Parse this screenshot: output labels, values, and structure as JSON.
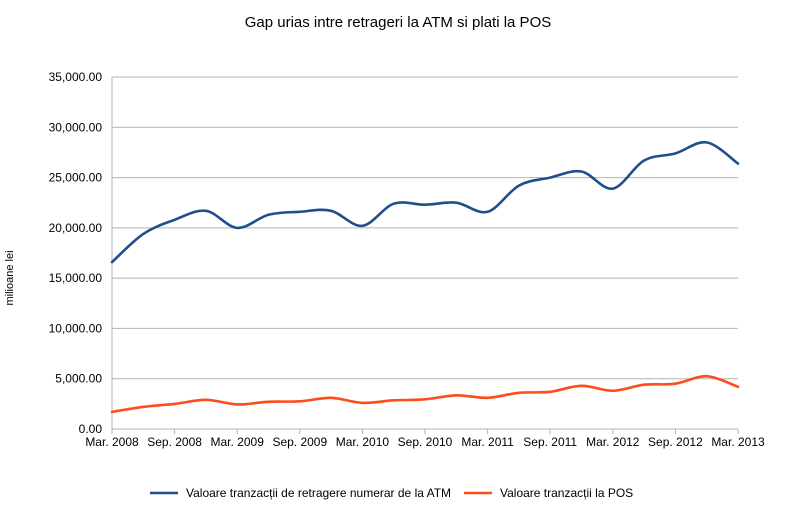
{
  "chart_data": {
    "type": "line",
    "title": "Gap urias intre retrageri la ATM si plati la POS",
    "xlabel": "",
    "ylabel": "milioane lei",
    "ylim": [
      0,
      35000
    ],
    "grid": true,
    "legend_position": "bottom",
    "y_ticks": [
      "0.00",
      "5,000.00",
      "10,000.00",
      "15,000.00",
      "20,000.00",
      "25,000.00",
      "30,000.00",
      "35,000.00"
    ],
    "x_ticks": [
      "Mar. 2008",
      "Sep. 2008",
      "Mar. 2009",
      "Sep. 2009",
      "Mar. 2010",
      "Sep. 2010",
      "Mar. 2011",
      "Sep. 2011",
      "Mar. 2012",
      "Sep. 2012",
      "Mar. 2013"
    ],
    "x": [
      "Mar. 2008",
      "Jun. 2008",
      "Sep. 2008",
      "Dec. 2008",
      "Mar. 2009",
      "Jun. 2009",
      "Sep. 2009",
      "Dec. 2009",
      "Mar. 2010",
      "Jun. 2010",
      "Sep. 2010",
      "Dec. 2010",
      "Mar. 2011",
      "Jun. 2011",
      "Sep. 2011",
      "Dec. 2011",
      "Mar. 2012",
      "Jun. 2012",
      "Sep. 2012",
      "Dec. 2012",
      "Mar. 2013"
    ],
    "series": [
      {
        "name": "Valoare tranzacții de retragere numerar de la ATM",
        "color": "#1f4e8c",
        "values": [
          16600,
          19400,
          20800,
          21700,
          20000,
          21300,
          21600,
          21700,
          20200,
          22400,
          22300,
          22500,
          21600,
          24200,
          25000,
          25600,
          23900,
          26700,
          27400,
          28500,
          26400
        ]
      },
      {
        "name": "Valoare tranzacții la POS",
        "color": "#ff4c1c",
        "values": [
          1700,
          2200,
          2500,
          2900,
          2450,
          2700,
          2750,
          3100,
          2600,
          2850,
          2950,
          3350,
          3100,
          3600,
          3700,
          4300,
          3800,
          4400,
          4500,
          5250,
          4200
        ]
      }
    ]
  }
}
